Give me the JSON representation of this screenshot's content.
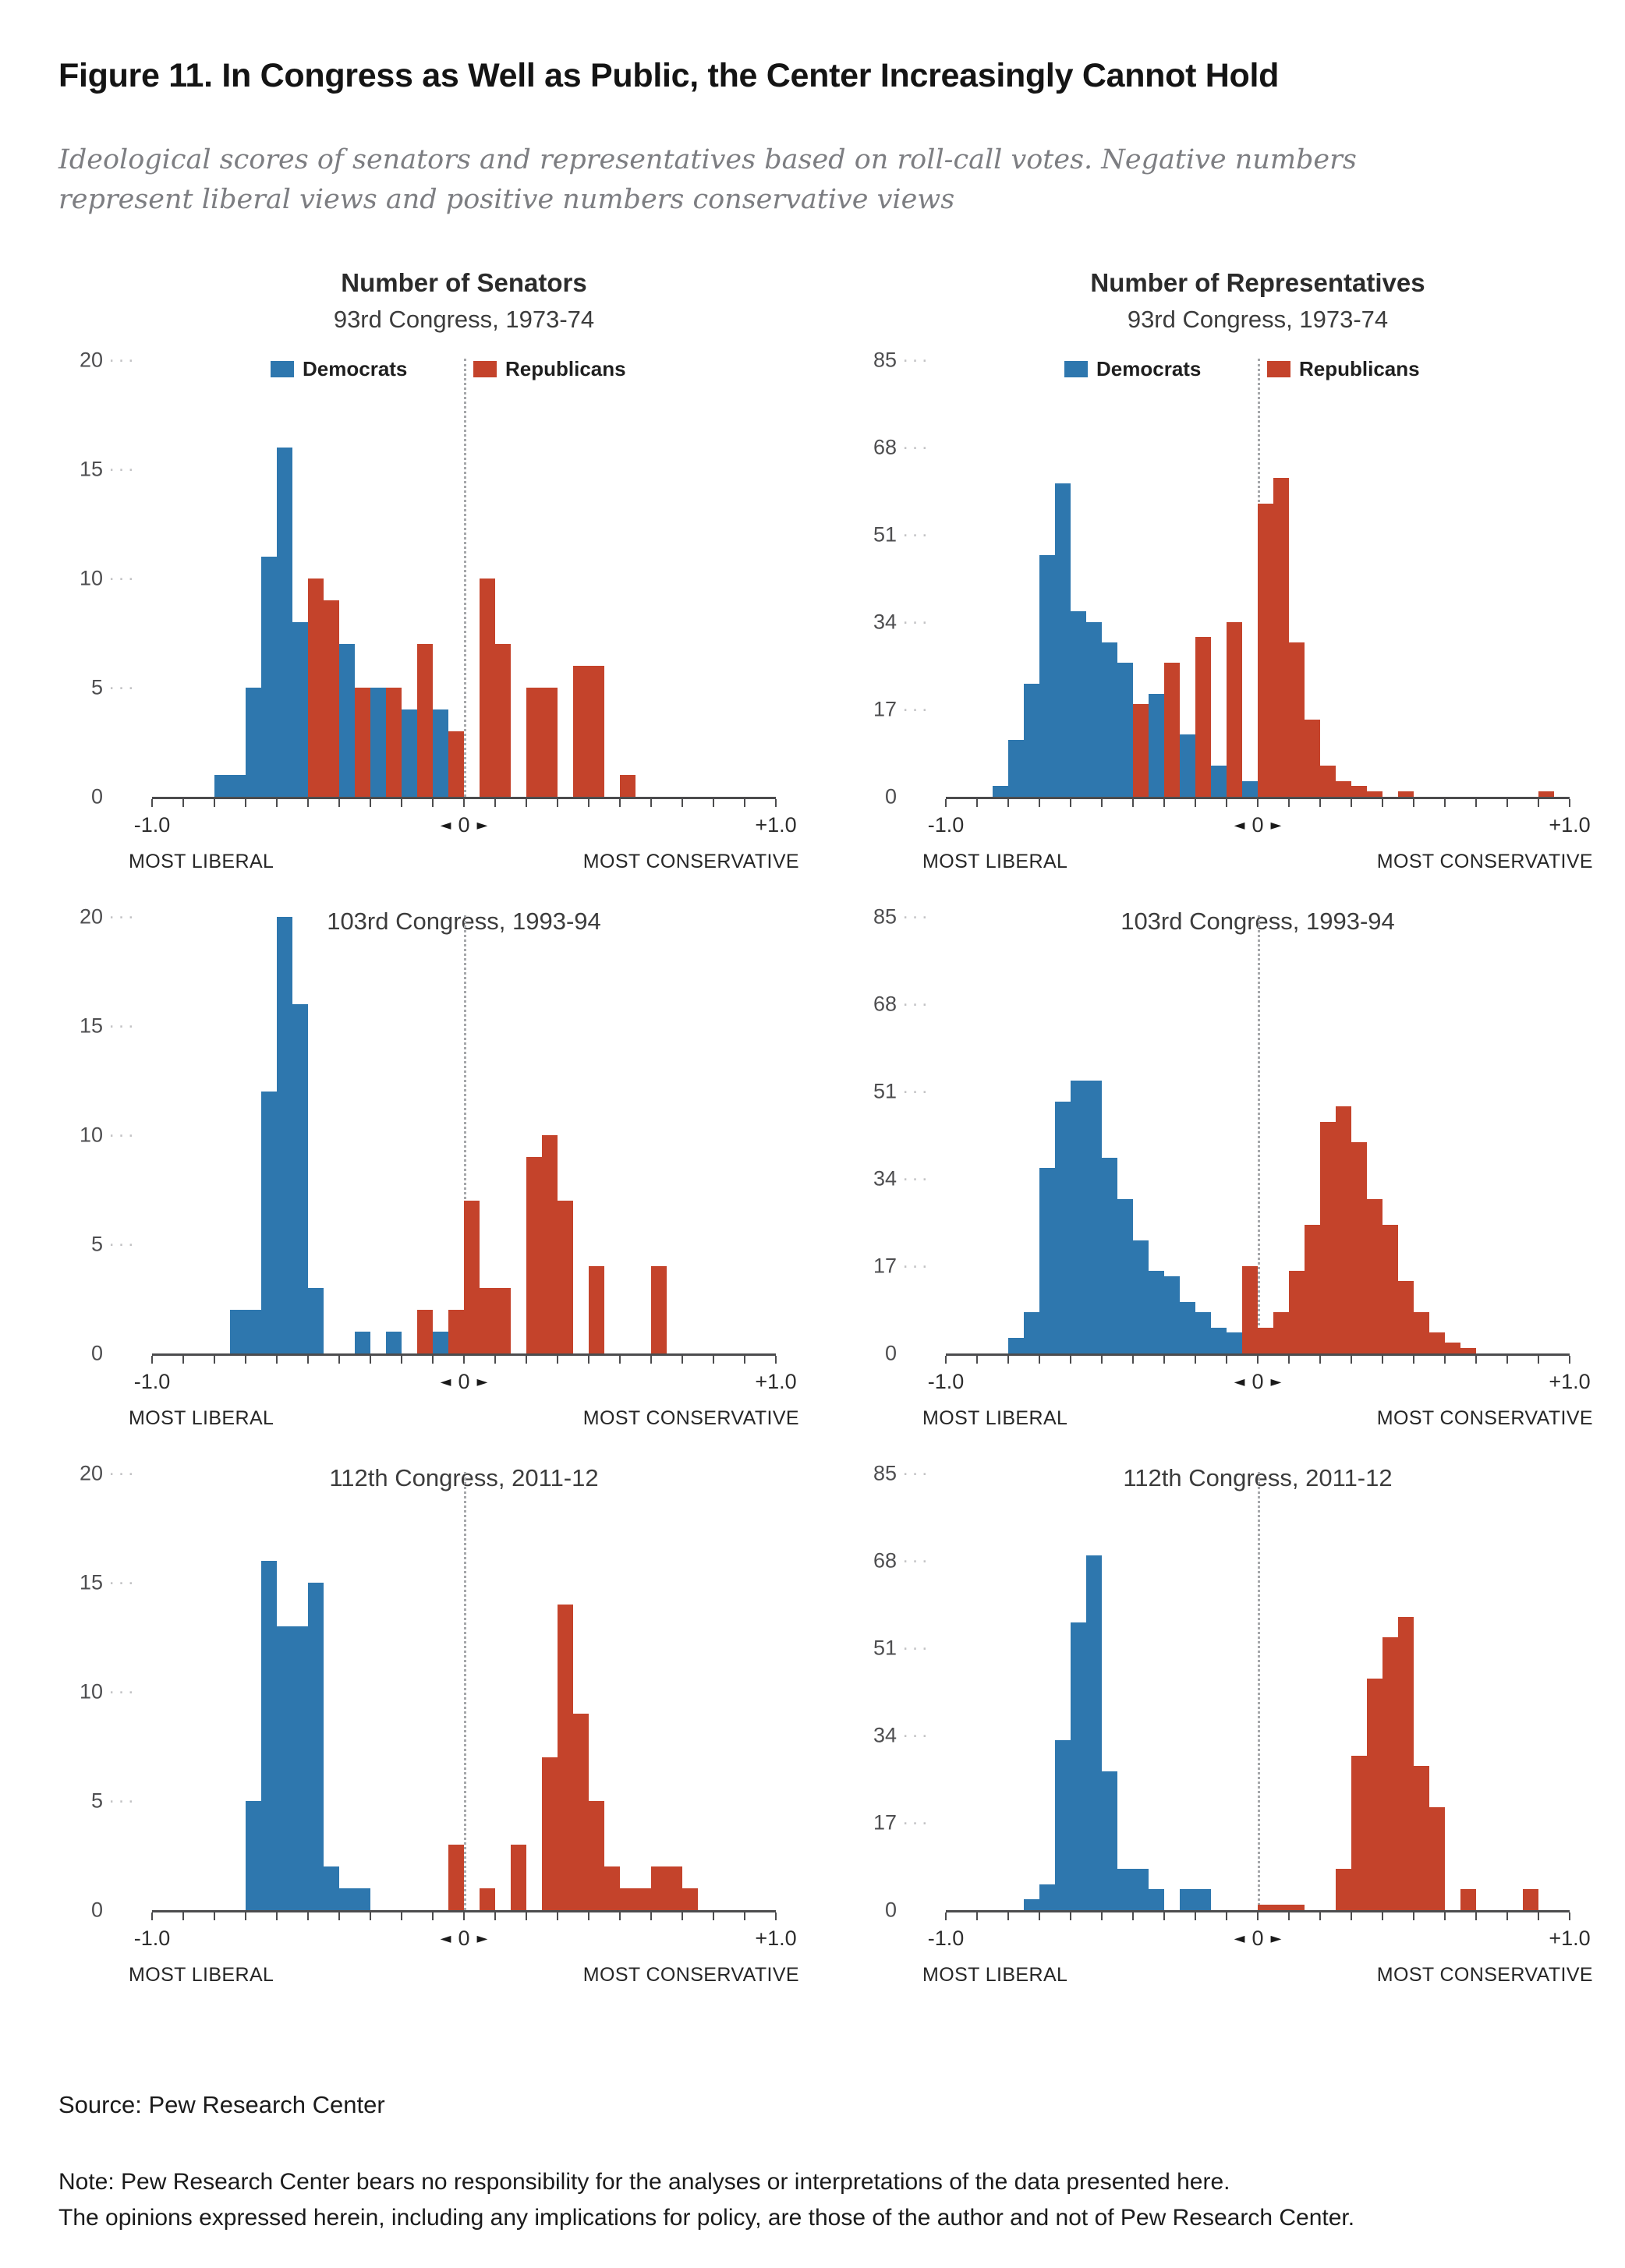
{
  "page": {
    "title": "Figure 11. In Congress as Well as Public, the Center Increasingly Cannot Hold",
    "subtitle": "Ideological scores of senators and representatives based on roll-call votes. Negative numbers represent liberal views and positive numbers conservative views",
    "source": "Source: Pew Research Center",
    "note_lines": [
      "Note: Pew Research Center bears no responsibility for the analyses or interpretations of the data presented here.",
      "The opinions expressed herein, including any implications for policy, are those of the author and not of Pew Research Center."
    ]
  },
  "colors": {
    "democrat": "#2E77AE",
    "republican": "#C4432B"
  },
  "columns": [
    {
      "header": "Number of Senators",
      "subheader": "93rd Congress, 1973-74"
    },
    {
      "header": "Number of Representatives",
      "subheader": "93rd Congress, 1973-74"
    }
  ],
  "axis_labels": {
    "min": "-1.0",
    "zero": "0",
    "max": "+1.0",
    "zero_left_arrow": "◄",
    "zero_right_arrow": "►",
    "left_caption": "MOST LIBERAL",
    "right_caption": "MOST CONSERVATIVE"
  },
  "chart_data": [
    {
      "type": "bar",
      "subtype": "histogram",
      "chamber": "Senate",
      "congress": "93rd Congress, 1973-74",
      "show_legend": true,
      "xlim": [
        -1,
        1
      ],
      "ylim": [
        0,
        20
      ],
      "yticks": [
        0,
        5,
        10,
        15,
        20
      ],
      "bin_width": 0.05,
      "series": [
        {
          "name": "Democrats",
          "color": "#2E77AE",
          "bars": [
            [
              -0.775,
              1
            ],
            [
              -0.725,
              1
            ],
            [
              -0.675,
              5
            ],
            [
              -0.625,
              11
            ],
            [
              -0.575,
              16
            ],
            [
              -0.525,
              8
            ],
            [
              -0.375,
              7
            ],
            [
              -0.275,
              5
            ],
            [
              -0.175,
              4
            ],
            [
              -0.075,
              4
            ]
          ]
        },
        {
          "name": "Republicans",
          "color": "#C4432B",
          "bars": [
            [
              -0.475,
              10
            ],
            [
              -0.425,
              9
            ],
            [
              -0.325,
              5
            ],
            [
              -0.225,
              5
            ],
            [
              -0.125,
              7
            ],
            [
              -0.025,
              3
            ],
            [
              0.075,
              10
            ],
            [
              0.125,
              7
            ],
            [
              0.225,
              5
            ],
            [
              0.275,
              5
            ],
            [
              0.375,
              6
            ],
            [
              0.425,
              6
            ],
            [
              0.525,
              1
            ]
          ]
        }
      ]
    },
    {
      "type": "bar",
      "subtype": "histogram",
      "chamber": "Senate",
      "congress": "103rd Congress, 1993-94",
      "inner_title": "103rd Congress, 1993-94",
      "show_legend": false,
      "xlim": [
        -1,
        1
      ],
      "ylim": [
        0,
        20
      ],
      "yticks": [
        0,
        5,
        10,
        15,
        20
      ],
      "bin_width": 0.05,
      "series": [
        {
          "name": "Democrats",
          "color": "#2E77AE",
          "bars": [
            [
              -0.725,
              2
            ],
            [
              -0.675,
              2
            ],
            [
              -0.625,
              12
            ],
            [
              -0.575,
              20
            ],
            [
              -0.525,
              16
            ],
            [
              -0.475,
              3
            ],
            [
              -0.325,
              1
            ],
            [
              -0.225,
              1
            ],
            [
              -0.075,
              1
            ]
          ]
        },
        {
          "name": "Republicans",
          "color": "#C4432B",
          "bars": [
            [
              -0.125,
              2
            ],
            [
              -0.025,
              2
            ],
            [
              0.025,
              7
            ],
            [
              0.075,
              3
            ],
            [
              0.125,
              3
            ],
            [
              0.225,
              9
            ],
            [
              0.275,
              10
            ],
            [
              0.325,
              7
            ],
            [
              0.425,
              4
            ],
            [
              0.625,
              4
            ]
          ]
        }
      ]
    },
    {
      "type": "bar",
      "subtype": "histogram",
      "chamber": "Senate",
      "congress": "112th Congress, 2011-12",
      "inner_title": "112th Congress, 2011-12",
      "show_legend": false,
      "xlim": [
        -1,
        1
      ],
      "ylim": [
        0,
        20
      ],
      "yticks": [
        0,
        5,
        10,
        15,
        20
      ],
      "bin_width": 0.05,
      "series": [
        {
          "name": "Democrats",
          "color": "#2E77AE",
          "bars": [
            [
              -0.675,
              5
            ],
            [
              -0.625,
              16
            ],
            [
              -0.575,
              13
            ],
            [
              -0.525,
              13
            ],
            [
              -0.475,
              15
            ],
            [
              -0.425,
              2
            ],
            [
              -0.375,
              1
            ],
            [
              -0.325,
              1
            ]
          ]
        },
        {
          "name": "Republicans",
          "color": "#C4432B",
          "bars": [
            [
              -0.025,
              3
            ],
            [
              0.075,
              1
            ],
            [
              0.175,
              3
            ],
            [
              0.275,
              7
            ],
            [
              0.325,
              14
            ],
            [
              0.375,
              9
            ],
            [
              0.425,
              5
            ],
            [
              0.475,
              2
            ],
            [
              0.525,
              1
            ],
            [
              0.575,
              1
            ],
            [
              0.625,
              2
            ],
            [
              0.675,
              2
            ],
            [
              0.725,
              1
            ]
          ]
        }
      ]
    },
    {
      "type": "bar",
      "subtype": "histogram",
      "chamber": "House",
      "congress": "93rd Congress, 1973-74",
      "show_legend": true,
      "xlim": [
        -1,
        1
      ],
      "ylim": [
        0,
        85
      ],
      "yticks": [
        0,
        17,
        34,
        51,
        68,
        85
      ],
      "bin_width": 0.05,
      "series": [
        {
          "name": "Democrats",
          "color": "#2E77AE",
          "bars": [
            [
              -0.825,
              2
            ],
            [
              -0.775,
              11
            ],
            [
              -0.725,
              22
            ],
            [
              -0.675,
              47
            ],
            [
              -0.625,
              61
            ],
            [
              -0.575,
              36
            ],
            [
              -0.525,
              34
            ],
            [
              -0.475,
              30
            ],
            [
              -0.425,
              26
            ],
            [
              -0.325,
              20
            ],
            [
              -0.225,
              12
            ],
            [
              -0.125,
              6
            ],
            [
              -0.025,
              3
            ]
          ]
        },
        {
          "name": "Republicans",
          "color": "#C4432B",
          "bars": [
            [
              -0.375,
              18
            ],
            [
              -0.275,
              26
            ],
            [
              -0.175,
              31
            ],
            [
              -0.075,
              34
            ],
            [
              0.025,
              57
            ],
            [
              0.075,
              62
            ],
            [
              0.125,
              30
            ],
            [
              0.175,
              15
            ],
            [
              0.225,
              6
            ],
            [
              0.275,
              3
            ],
            [
              0.325,
              2
            ],
            [
              0.375,
              1
            ],
            [
              0.475,
              1
            ],
            [
              0.925,
              1
            ]
          ]
        }
      ]
    },
    {
      "type": "bar",
      "subtype": "histogram",
      "chamber": "House",
      "congress": "103rd Congress, 1993-94",
      "inner_title": "103rd Congress, 1993-94",
      "show_legend": false,
      "xlim": [
        -1,
        1
      ],
      "ylim": [
        0,
        85
      ],
      "yticks": [
        0,
        17,
        34,
        51,
        68,
        85
      ],
      "bin_width": 0.05,
      "series": [
        {
          "name": "Democrats",
          "color": "#2E77AE",
          "bars": [
            [
              -0.775,
              3
            ],
            [
              -0.725,
              8
            ],
            [
              -0.675,
              36
            ],
            [
              -0.625,
              49
            ],
            [
              -0.575,
              53
            ],
            [
              -0.525,
              53
            ],
            [
              -0.475,
              38
            ],
            [
              -0.425,
              30
            ],
            [
              -0.375,
              22
            ],
            [
              -0.325,
              16
            ],
            [
              -0.275,
              15
            ],
            [
              -0.225,
              10
            ],
            [
              -0.175,
              8
            ],
            [
              -0.125,
              5
            ],
            [
              -0.075,
              4
            ]
          ]
        },
        {
          "name": "Republicans",
          "color": "#C4432B",
          "bars": [
            [
              -0.025,
              17
            ],
            [
              0.025,
              5
            ],
            [
              0.075,
              8
            ],
            [
              0.125,
              16
            ],
            [
              0.175,
              25
            ],
            [
              0.225,
              45
            ],
            [
              0.275,
              48
            ],
            [
              0.325,
              41
            ],
            [
              0.375,
              30
            ],
            [
              0.425,
              25
            ],
            [
              0.475,
              14
            ],
            [
              0.525,
              8
            ],
            [
              0.575,
              4
            ],
            [
              0.625,
              2
            ],
            [
              0.675,
              1
            ]
          ]
        }
      ]
    },
    {
      "type": "bar",
      "subtype": "histogram",
      "chamber": "House",
      "congress": "112th Congress, 2011-12",
      "inner_title": "112th Congress, 2011-12",
      "show_legend": false,
      "xlim": [
        -1,
        1
      ],
      "ylim": [
        0,
        85
      ],
      "yticks": [
        0,
        17,
        34,
        51,
        68,
        85
      ],
      "bin_width": 0.05,
      "series": [
        {
          "name": "Democrats",
          "color": "#2E77AE",
          "bars": [
            [
              -0.725,
              2
            ],
            [
              -0.675,
              5
            ],
            [
              -0.625,
              33
            ],
            [
              -0.575,
              56
            ],
            [
              -0.525,
              69
            ],
            [
              -0.475,
              27
            ],
            [
              -0.425,
              8
            ],
            [
              -0.375,
              8
            ],
            [
              -0.325,
              4
            ],
            [
              -0.225,
              4
            ],
            [
              -0.175,
              4
            ]
          ]
        },
        {
          "name": "Republicans",
          "color": "#C4432B",
          "bars": [
            [
              0.025,
              1
            ],
            [
              0.075,
              1
            ],
            [
              0.125,
              1
            ],
            [
              0.275,
              8
            ],
            [
              0.325,
              30
            ],
            [
              0.375,
              45
            ],
            [
              0.425,
              53
            ],
            [
              0.475,
              57
            ],
            [
              0.525,
              28
            ],
            [
              0.575,
              20
            ],
            [
              0.675,
              4
            ],
            [
              0.875,
              4
            ]
          ]
        }
      ]
    }
  ]
}
